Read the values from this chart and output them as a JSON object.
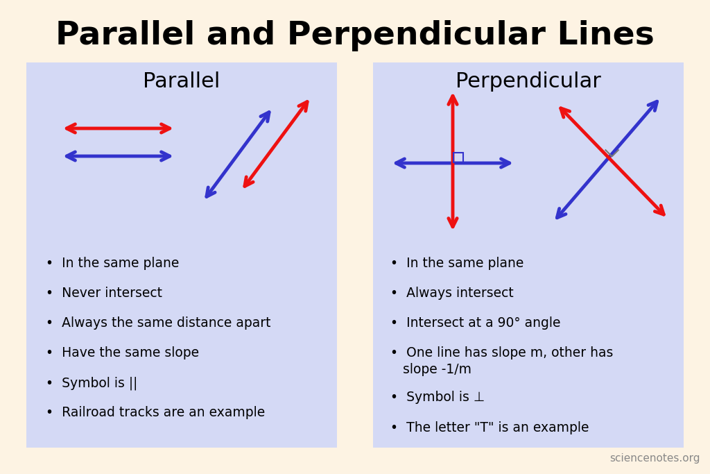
{
  "bg_color": "#fdf3e3",
  "panel_color": "#d4d9f5",
  "title": "Parallel and Perpendicular Lines",
  "title_fontsize": 34,
  "title_fontweight": "bold",
  "panel_left_title": "Parallel",
  "panel_right_title": "Perpendicular",
  "panel_title_fontsize": 22,
  "red_color": "#ee1111",
  "blue_color": "#3333cc",
  "bullet_fontsize": 13.5,
  "parallel_bullets": [
    "In the same plane",
    "Never intersect",
    "Always the same distance apart",
    "Have the same slope",
    "Symbol is ||",
    "Railroad tracks are an example"
  ],
  "perpendicular_bullets": [
    "In the same plane",
    "Always intersect",
    "Intersect at a 90° angle",
    "One line has slope m, other has\n    slope -1/m",
    "Symbol is ⊥",
    "The letter \"T\" is an example"
  ],
  "watermark": "sciencenotes.org"
}
